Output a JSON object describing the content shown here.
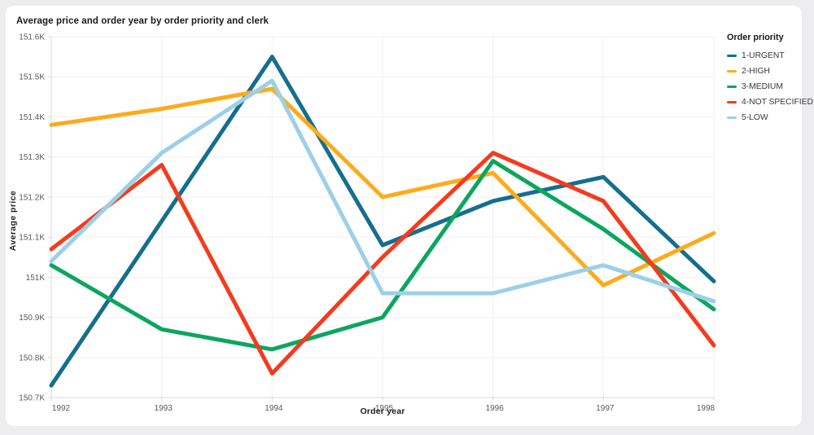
{
  "chart_data": {
    "type": "line",
    "title": "Average price and order year by order priority and clerk",
    "xlabel": "Order year",
    "ylabel": "Average price",
    "legend_title": "Order priority",
    "legend_position": "top-right",
    "grid": true,
    "x": [
      1992,
      1993,
      1994,
      1995,
      1996,
      1997,
      1998
    ],
    "xticks": [
      "1992",
      "1993",
      "1994",
      "1995",
      "1996",
      "1997",
      "1998"
    ],
    "yticks": [
      "151.6K",
      "151.5K",
      "151.4K",
      "151.3K",
      "151.2K",
      "151.1K",
      "151K",
      "150.9K",
      "150.8K",
      "150.7K"
    ],
    "ylim": [
      150.7,
      151.6
    ],
    "y_unit": "K",
    "series": [
      {
        "name": "1-URGENT",
        "color": "#156e8e",
        "values": [
          150.73,
          151.14,
          151.55,
          151.08,
          151.19,
          151.25,
          150.99
        ]
      },
      {
        "name": "2-HIGH",
        "color": "#fdab1b",
        "values": [
          151.38,
          151.42,
          151.47,
          151.2,
          151.26,
          150.98,
          151.11
        ]
      },
      {
        "name": "3-MEDIUM",
        "color": "#0ba65e",
        "values": [
          151.03,
          150.87,
          150.82,
          150.9,
          151.29,
          151.12,
          150.92
        ]
      },
      {
        "name": "4-NOT SPECIFIED",
        "color": "#f43b1e",
        "values": [
          151.07,
          151.28,
          150.76,
          151.05,
          151.31,
          151.19,
          150.83
        ]
      },
      {
        "name": "5-LOW",
        "color": "#9ccfe9",
        "values": [
          151.04,
          151.31,
          151.49,
          150.96,
          150.96,
          151.03,
          150.94
        ]
      }
    ]
  }
}
